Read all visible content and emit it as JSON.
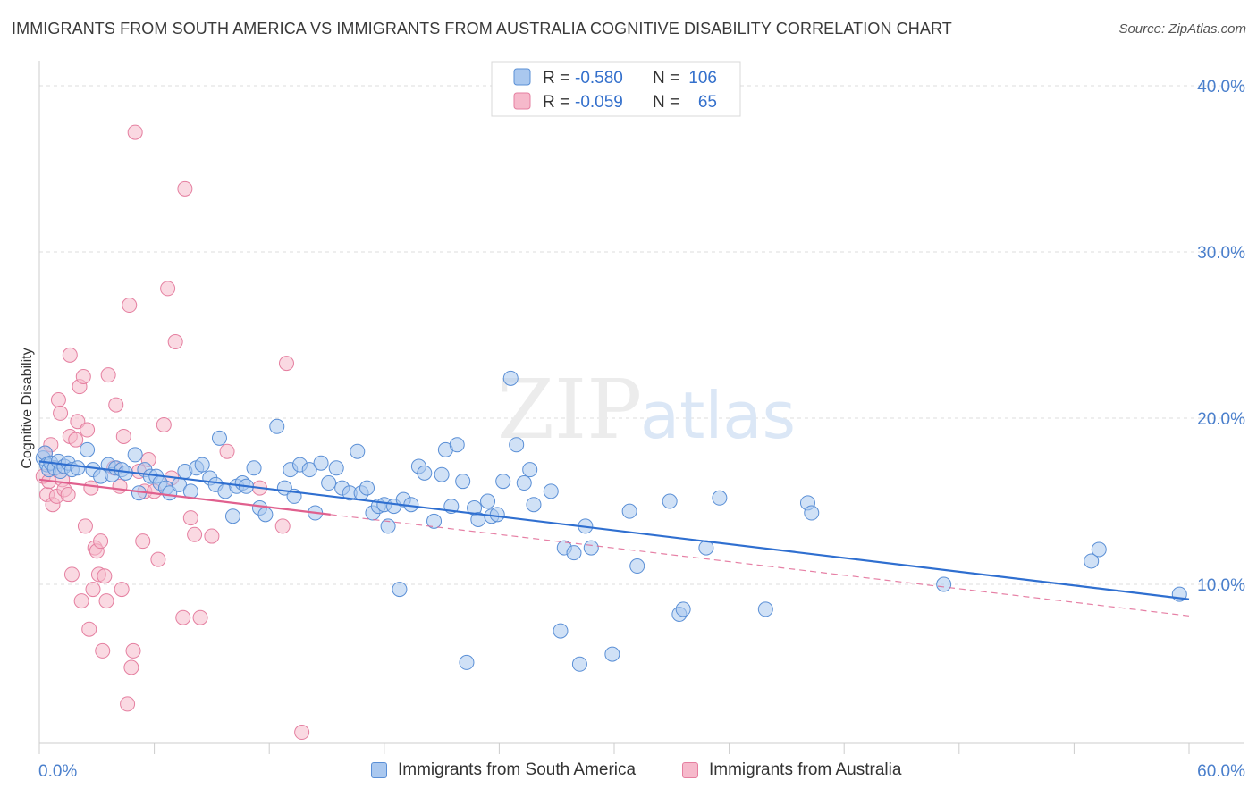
{
  "header": {
    "title": "IMMIGRANTS FROM SOUTH AMERICA VS IMMIGRANTS FROM AUSTRALIA COGNITIVE DISABILITY CORRELATION CHART",
    "source": "Source: ZipAtlas.com"
  },
  "watermark": {
    "part1": "ZIP",
    "part2": "atlas"
  },
  "stats_legend": [
    {
      "r_label": "R =",
      "r_value": "-0.580",
      "n_label": "N =",
      "n_value": "106"
    },
    {
      "r_label": "R =",
      "r_value": "-0.059",
      "n_label": "N =",
      "n_value": "65"
    }
  ],
  "colors": {
    "blue_fill": "#aac8ef",
    "blue_stroke": "#5a8fd6",
    "blue_line": "#2f6fd0",
    "pink_fill": "#f6b9cb",
    "pink_stroke": "#e57fa0",
    "pink_line": "#e0608e",
    "axis_text": "#4a7fcc",
    "grid": "#dddddd"
  },
  "chart_data": {
    "type": "scatter",
    "title": "IMMIGRANTS FROM SOUTH AMERICA VS IMMIGRANTS FROM AUSTRALIA COGNITIVE DISABILITY CORRELATION CHART",
    "ylabel": "Cognitive Disability",
    "xlabel": "",
    "xlim": [
      0,
      60
    ],
    "ylim": [
      1,
      41.5
    ],
    "x_tick_labels": [
      "0.0%",
      "60.0%"
    ],
    "y_ticks": [
      10,
      20,
      30,
      40
    ],
    "y_tick_labels": [
      "10.0%",
      "20.0%",
      "30.0%",
      "40.0%"
    ],
    "grid": "horizontal dashed",
    "legend_position": "bottom",
    "series": [
      {
        "name": "Immigrants from South America",
        "color": "#aac8ef",
        "r": -0.58,
        "n": 106,
        "trend": {
          "x": [
            0,
            60
          ],
          "y": [
            17.4,
            9.1
          ]
        },
        "points": [
          [
            0.2,
            17.6
          ],
          [
            0.3,
            17.9
          ],
          [
            0.4,
            17.2
          ],
          [
            0.5,
            16.9
          ],
          [
            0.6,
            17.3
          ],
          [
            0.8,
            17.0
          ],
          [
            1.0,
            17.4
          ],
          [
            1.1,
            16.8
          ],
          [
            1.3,
            17.1
          ],
          [
            1.5,
            17.3
          ],
          [
            1.7,
            16.9
          ],
          [
            2.0,
            17.0
          ],
          [
            2.5,
            18.1
          ],
          [
            2.8,
            16.9
          ],
          [
            3.2,
            16.5
          ],
          [
            3.6,
            17.2
          ],
          [
            3.8,
            16.6
          ],
          [
            4.0,
            17.0
          ],
          [
            4.3,
            16.9
          ],
          [
            4.5,
            16.7
          ],
          [
            5.0,
            17.8
          ],
          [
            5.2,
            15.5
          ],
          [
            5.5,
            16.9
          ],
          [
            5.8,
            16.5
          ],
          [
            6.1,
            16.5
          ],
          [
            6.3,
            16.1
          ],
          [
            6.6,
            15.8
          ],
          [
            6.8,
            15.5
          ],
          [
            7.3,
            16.0
          ],
          [
            7.6,
            16.8
          ],
          [
            7.9,
            15.6
          ],
          [
            8.2,
            17.0
          ],
          [
            8.5,
            17.2
          ],
          [
            8.9,
            16.4
          ],
          [
            9.2,
            16.0
          ],
          [
            9.4,
            18.8
          ],
          [
            9.7,
            15.6
          ],
          [
            10.1,
            14.1
          ],
          [
            10.3,
            15.9
          ],
          [
            10.6,
            16.1
          ],
          [
            10.8,
            15.9
          ],
          [
            11.2,
            17.0
          ],
          [
            11.5,
            14.6
          ],
          [
            11.8,
            14.2
          ],
          [
            12.4,
            19.5
          ],
          [
            12.8,
            15.8
          ],
          [
            13.1,
            16.9
          ],
          [
            13.3,
            15.3
          ],
          [
            13.6,
            17.2
          ],
          [
            14.1,
            16.9
          ],
          [
            14.4,
            14.3
          ],
          [
            14.7,
            17.3
          ],
          [
            15.1,
            16.1
          ],
          [
            15.5,
            17.0
          ],
          [
            15.8,
            15.8
          ],
          [
            16.2,
            15.5
          ],
          [
            16.6,
            18.0
          ],
          [
            16.8,
            15.5
          ],
          [
            17.1,
            15.8
          ],
          [
            17.4,
            14.3
          ],
          [
            17.7,
            14.7
          ],
          [
            18.0,
            14.8
          ],
          [
            18.2,
            13.5
          ],
          [
            18.5,
            14.7
          ],
          [
            18.8,
            9.7
          ],
          [
            19.0,
            15.1
          ],
          [
            19.4,
            14.8
          ],
          [
            19.8,
            17.1
          ],
          [
            20.1,
            16.7
          ],
          [
            20.6,
            13.8
          ],
          [
            21.0,
            16.6
          ],
          [
            21.2,
            18.1
          ],
          [
            21.5,
            14.7
          ],
          [
            21.8,
            18.4
          ],
          [
            22.1,
            16.2
          ],
          [
            22.3,
            5.3
          ],
          [
            22.7,
            14.6
          ],
          [
            22.9,
            13.9
          ],
          [
            23.4,
            15.0
          ],
          [
            23.6,
            14.1
          ],
          [
            23.9,
            14.2
          ],
          [
            24.2,
            16.2
          ],
          [
            24.6,
            22.4
          ],
          [
            24.9,
            18.4
          ],
          [
            25.3,
            16.1
          ],
          [
            25.6,
            16.9
          ],
          [
            25.8,
            14.8
          ],
          [
            26.7,
            15.6
          ],
          [
            27.2,
            7.2
          ],
          [
            27.4,
            12.2
          ],
          [
            27.9,
            11.9
          ],
          [
            28.2,
            5.2
          ],
          [
            28.5,
            13.5
          ],
          [
            28.8,
            12.2
          ],
          [
            29.9,
            5.8
          ],
          [
            30.8,
            14.4
          ],
          [
            31.2,
            11.1
          ],
          [
            32.9,
            15.0
          ],
          [
            33.4,
            8.2
          ],
          [
            33.6,
            8.5
          ],
          [
            34.8,
            12.2
          ],
          [
            35.5,
            15.2
          ],
          [
            37.9,
            8.5
          ],
          [
            40.1,
            14.9
          ],
          [
            40.3,
            14.3
          ],
          [
            47.2,
            10.0
          ],
          [
            54.9,
            11.4
          ],
          [
            55.3,
            12.1
          ],
          [
            59.5,
            9.4
          ]
        ]
      },
      {
        "name": "Immigrants from Australia",
        "color": "#f6b9cb",
        "r": -0.059,
        "n": 65,
        "trend": {
          "x": [
            0,
            15.2
          ],
          "y": [
            16.3,
            14.2
          ]
        },
        "trend_dashed": {
          "x": [
            15.2,
            60
          ],
          "y": [
            14.2,
            8.1
          ]
        },
        "points": [
          [
            0.2,
            16.5
          ],
          [
            0.3,
            17.9
          ],
          [
            0.4,
            15.4
          ],
          [
            0.5,
            16.2
          ],
          [
            0.6,
            18.4
          ],
          [
            0.7,
            14.8
          ],
          [
            0.8,
            17.0
          ],
          [
            0.9,
            15.3
          ],
          [
            1.0,
            21.1
          ],
          [
            1.1,
            20.3
          ],
          [
            1.2,
            16.3
          ],
          [
            1.3,
            15.7
          ],
          [
            1.5,
            15.4
          ],
          [
            1.6,
            18.9
          ],
          [
            1.6,
            23.8
          ],
          [
            1.7,
            10.6
          ],
          [
            1.9,
            18.7
          ],
          [
            2.0,
            19.8
          ],
          [
            2.1,
            21.9
          ],
          [
            2.2,
            9.0
          ],
          [
            2.3,
            22.5
          ],
          [
            2.4,
            13.5
          ],
          [
            2.5,
            19.3
          ],
          [
            2.6,
            7.3
          ],
          [
            2.7,
            15.8
          ],
          [
            2.8,
            9.7
          ],
          [
            2.9,
            12.2
          ],
          [
            3.0,
            12.0
          ],
          [
            3.1,
            10.6
          ],
          [
            3.2,
            12.6
          ],
          [
            3.3,
            6.0
          ],
          [
            3.4,
            10.5
          ],
          [
            3.5,
            9.0
          ],
          [
            3.6,
            22.6
          ],
          [
            3.9,
            17.0
          ],
          [
            4.0,
            20.8
          ],
          [
            4.2,
            15.9
          ],
          [
            4.3,
            9.7
          ],
          [
            4.4,
            18.9
          ],
          [
            4.6,
            2.8
          ],
          [
            4.7,
            26.8
          ],
          [
            4.8,
            5.0
          ],
          [
            4.9,
            6.0
          ],
          [
            5.0,
            37.2
          ],
          [
            5.2,
            16.8
          ],
          [
            5.4,
            12.6
          ],
          [
            5.5,
            15.6
          ],
          [
            5.7,
            17.5
          ],
          [
            6.0,
            15.6
          ],
          [
            6.2,
            11.5
          ],
          [
            6.5,
            19.6
          ],
          [
            6.7,
            27.8
          ],
          [
            6.9,
            16.4
          ],
          [
            7.1,
            24.6
          ],
          [
            7.5,
            8.0
          ],
          [
            7.6,
            33.8
          ],
          [
            7.9,
            14.0
          ],
          [
            8.1,
            13.0
          ],
          [
            8.4,
            8.0
          ],
          [
            9.0,
            12.9
          ],
          [
            9.8,
            18.0
          ],
          [
            11.5,
            15.8
          ],
          [
            12.7,
            13.5
          ],
          [
            12.9,
            23.3
          ],
          [
            13.7,
            1.1
          ]
        ]
      }
    ]
  }
}
